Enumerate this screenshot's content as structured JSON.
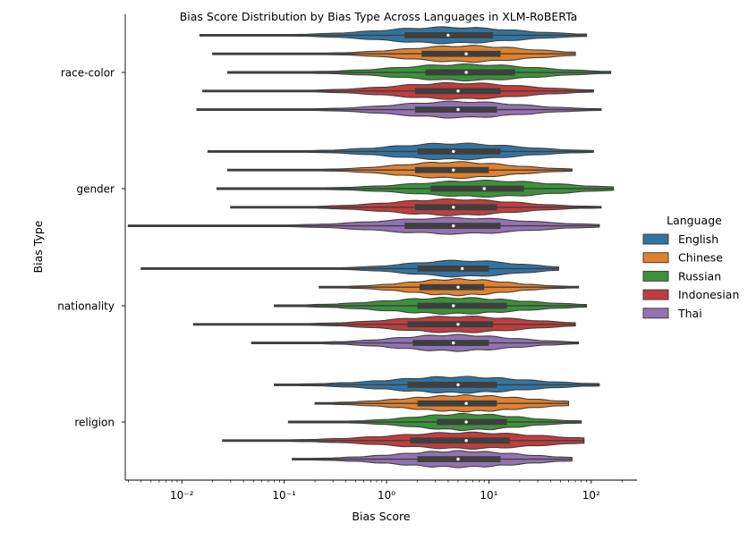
{
  "chart_data": {
    "type": "violin",
    "orientation": "horizontal",
    "title": "Bias Score Distribution by Bias Type Across Languages in XLM-RoBERTa",
    "xlabel": "Bias Score",
    "ylabel": "Bias Type",
    "x_scale": "log",
    "xlim": [
      0.0028,
      280
    ],
    "x_ticks": [
      {
        "value": 0.01,
        "label": "10⁻²"
      },
      {
        "value": 0.1,
        "label": "10⁻¹"
      },
      {
        "value": 1,
        "label": "10⁰"
      },
      {
        "value": 10,
        "label": "10¹"
      },
      {
        "value": 100,
        "label": "10²"
      }
    ],
    "categories": [
      "race-color",
      "gender",
      "nationality",
      "religion"
    ],
    "grid": false,
    "legend": {
      "title": "Language",
      "placement": "right",
      "entries": [
        "English",
        "Chinese",
        "Russian",
        "Indonesian",
        "Thai"
      ]
    },
    "colors": {
      "English": "#3274a1",
      "Chinese": "#e1812c",
      "Russian": "#3a923a",
      "Indonesian": "#c03d3e",
      "Thai": "#9372b2",
      "box": "#3f3f3f",
      "median": "#ffffff",
      "outline": "#3f3f3f"
    },
    "series": [
      {
        "name": "English",
        "stats": [
          {
            "category": "race-color",
            "min": 0.015,
            "q1": 1.5,
            "median": 4.0,
            "q3": 11,
            "max": 90
          },
          {
            "category": "gender",
            "min": 0.018,
            "q1": 2.0,
            "median": 4.5,
            "q3": 13,
            "max": 105
          },
          {
            "category": "nationality",
            "min": 0.004,
            "q1": 2.0,
            "median": 5.5,
            "q3": 10,
            "max": 48
          },
          {
            "category": "religion",
            "min": 0.08,
            "q1": 1.6,
            "median": 5.0,
            "q3": 12,
            "max": 120
          }
        ]
      },
      {
        "name": "Chinese",
        "stats": [
          {
            "category": "race-color",
            "min": 0.02,
            "q1": 2.2,
            "median": 6.0,
            "q3": 13,
            "max": 70
          },
          {
            "category": "gender",
            "min": 0.028,
            "q1": 1.9,
            "median": 4.5,
            "q3": 10,
            "max": 65
          },
          {
            "category": "nationality",
            "min": 0.22,
            "q1": 2.1,
            "median": 5.0,
            "q3": 9,
            "max": 75
          },
          {
            "category": "religion",
            "min": 0.2,
            "q1": 2.0,
            "median": 6.0,
            "q3": 12,
            "max": 60
          }
        ]
      },
      {
        "name": "Russian",
        "stats": [
          {
            "category": "race-color",
            "min": 0.028,
            "q1": 2.4,
            "median": 6.0,
            "q3": 18,
            "max": 155
          },
          {
            "category": "gender",
            "min": 0.022,
            "q1": 2.7,
            "median": 9.0,
            "q3": 22,
            "max": 165
          },
          {
            "category": "nationality",
            "min": 0.08,
            "q1": 2.0,
            "median": 4.5,
            "q3": 15,
            "max": 90
          },
          {
            "category": "religion",
            "min": 0.11,
            "q1": 3.1,
            "median": 6.0,
            "q3": 15,
            "max": 80
          }
        ]
      },
      {
        "name": "Indonesian",
        "stats": [
          {
            "category": "race-color",
            "min": 0.016,
            "q1": 1.9,
            "median": 5.0,
            "q3": 13,
            "max": 105
          },
          {
            "category": "gender",
            "min": 0.03,
            "q1": 1.9,
            "median": 4.5,
            "q3": 12,
            "max": 125
          },
          {
            "category": "nationality",
            "min": 0.013,
            "q1": 1.6,
            "median": 5.0,
            "q3": 11,
            "max": 70
          },
          {
            "category": "religion",
            "min": 0.025,
            "q1": 1.7,
            "median": 6.0,
            "q3": 16,
            "max": 85
          }
        ]
      },
      {
        "name": "Thai",
        "stats": [
          {
            "category": "race-color",
            "min": 0.014,
            "q1": 1.9,
            "median": 5.0,
            "q3": 12,
            "max": 125
          },
          {
            "category": "gender",
            "min": 0.003,
            "q1": 1.5,
            "median": 4.5,
            "q3": 13,
            "max": 120
          },
          {
            "category": "nationality",
            "min": 0.048,
            "q1": 1.8,
            "median": 4.5,
            "q3": 10,
            "max": 75
          },
          {
            "category": "religion",
            "min": 0.12,
            "q1": 2.0,
            "median": 5.0,
            "q3": 13,
            "max": 65
          }
        ]
      }
    ]
  }
}
